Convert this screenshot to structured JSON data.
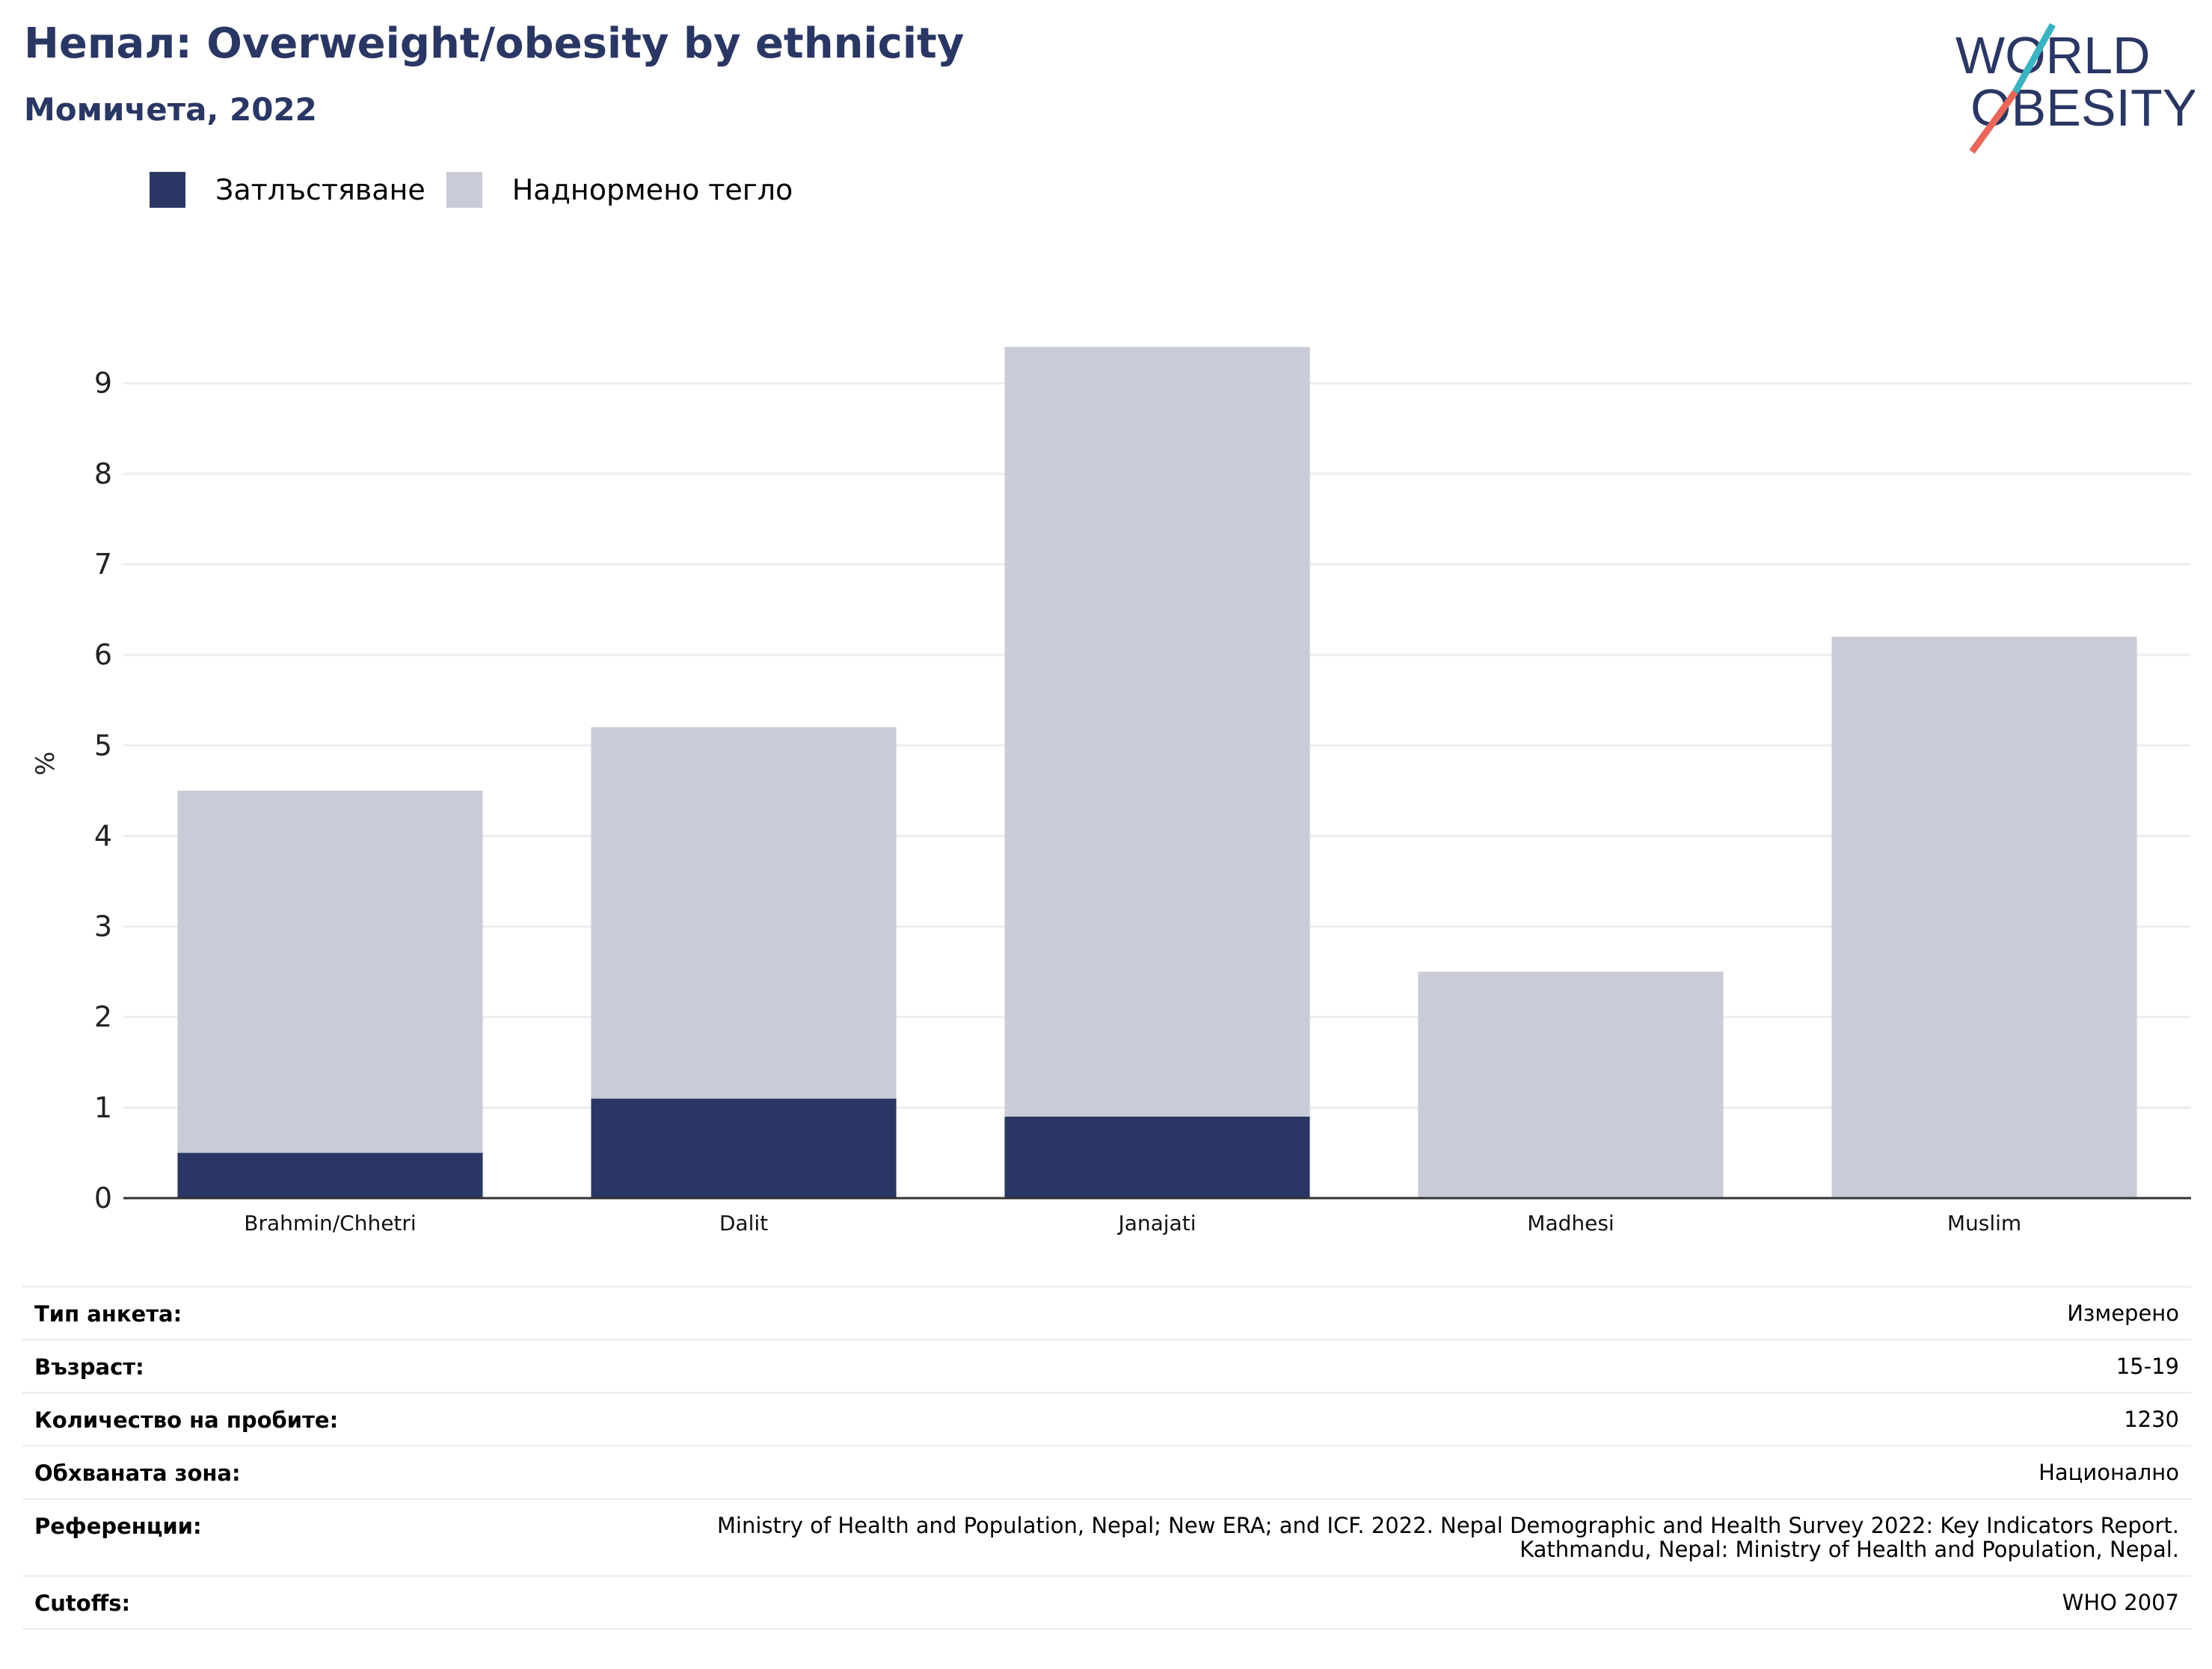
{
  "header": {
    "title": "Непал: Overweight/obesity by ethnicity",
    "subtitle": "Момичета, 2022"
  },
  "logo": {
    "line1": "WORLD",
    "line2": "OBESITY",
    "colors": {
      "text": "#2a3764",
      "accent_teal": "#3bb3c3",
      "accent_red": "#e8675a"
    }
  },
  "colors": {
    "obesity": "#2a3764",
    "overweight": "#c9cbd7",
    "grid": "#ebedf2",
    "axis": "#333333"
  },
  "chart_data": {
    "type": "bar",
    "stacked": true,
    "categories": [
      "Brahmin/Chhetri",
      "Dalit",
      "Janajati",
      "Madhesi",
      "Muslim"
    ],
    "series": [
      {
        "name": "Затлъстяване",
        "values": [
          0.5,
          1.1,
          0.9,
          0.0,
          0.0
        ]
      },
      {
        "name": "Наднормено тегло",
        "values": [
          4.0,
          4.1,
          8.5,
          2.5,
          6.2
        ]
      }
    ],
    "ylabel": "%",
    "ylim": [
      0,
      9.6
    ],
    "yticks": [
      "0",
      "1",
      "2",
      "3",
      "4",
      "5",
      "6",
      "7",
      "8",
      "9"
    ],
    "grid": true,
    "legend_position": "top-left"
  },
  "info": [
    {
      "label": "Тип анкета:",
      "value": "Измерено"
    },
    {
      "label": "Възраст:",
      "value": "15-19"
    },
    {
      "label": "Количество на пробите:",
      "value": "1230"
    },
    {
      "label": "Обхваната зона:",
      "value": "Национално"
    },
    {
      "label": "Референции:",
      "value": "Ministry of Health and Population, Nepal; New ERA; and ICF. 2022. Nepal Demographic and Health Survey 2022: Key Indicators Report.\nKathmandu, Nepal: Ministry of Health and Population, Nepal."
    },
    {
      "label": "Cutoffs:",
      "value": "WHO 2007"
    }
  ]
}
